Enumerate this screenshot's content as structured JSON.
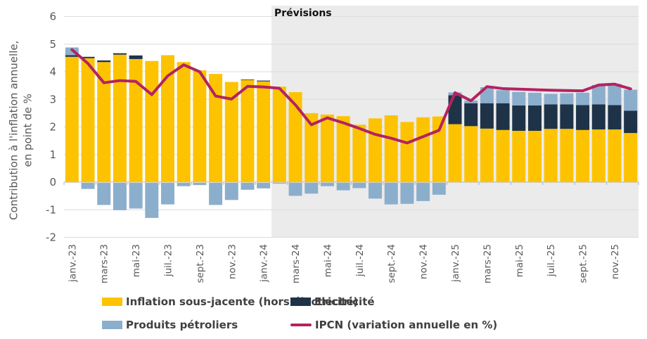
{
  "figure": {
    "ylabel_line1": "Contribution à l'inflation annuelle,",
    "ylabel_line2": "en point de %",
    "forecast_label": "Prévisions"
  },
  "legend": {
    "core": "Inflation sous-jacente (hors électricité)",
    "electricity": "Electricité",
    "petroleum": "Produits pétroliers",
    "ipcn": "IPCN (variation annuelle en %)"
  },
  "colors": {
    "core": "#FDC300",
    "electricity": "#1E3348",
    "petroleum": "#8CAECD",
    "ipcn": "#B32361",
    "forecast_bg": "#EBEBEB",
    "grid": "#DCDCDC",
    "zero_line": "#B5B5B5",
    "axis_text": "#595959"
  },
  "chart_data": {
    "type": "combo: stacked bar + line",
    "title": "",
    "xlabel": "",
    "ylabel": "Contribution à l'inflation annuelle, en point de %",
    "ylim": [
      -2,
      6
    ],
    "yticks": [
      6,
      5,
      4,
      3,
      2,
      1,
      0,
      -1,
      -2
    ],
    "grid": "horizontal",
    "legend_position": "bottom",
    "forecast_region_label": "Prévisions",
    "forecast_start_category": "févr.-24",
    "forecast_start_index": 13,
    "categories": [
      "janv.-23",
      "févr.-23",
      "mars-23",
      "avr.-23",
      "mai-23",
      "juin-23",
      "juil.-23",
      "août-23",
      "sept.-23",
      "oct.-23",
      "nov.-23",
      "déc.-23",
      "janv.-24",
      "févr.-24",
      "mars-24",
      "avr.-24",
      "mai-24",
      "juin-24",
      "juil.-24",
      "août-24",
      "sept.-24",
      "oct.-24",
      "nov.-24",
      "déc.-24",
      "janv.-25",
      "févr.-25",
      "mars-25",
      "avr.-25",
      "mai-25",
      "juin-25",
      "juil.-25",
      "août-25",
      "sept.-25",
      "oct.-25",
      "nov.-25",
      "déc.-25"
    ],
    "x_tick_labels": [
      "janv.-23",
      "mars-23",
      "mai-23",
      "juil.-23",
      "sept.-23",
      "nov.-23",
      "janv.-24",
      "mars-24",
      "mai-24",
      "juil.-24",
      "sept.-24",
      "nov.-24",
      "janv.-25",
      "mars-25",
      "mai-25",
      "juil.-25",
      "sept.-25",
      "nov.-25"
    ],
    "series": [
      {
        "name": "Inflation sous-jacente (hors électricité)",
        "type": "bar",
        "color_key": "core",
        "values": [
          4.54,
          4.49,
          4.35,
          4.62,
          4.46,
          4.39,
          4.6,
          4.35,
          4.05,
          3.92,
          3.63,
          3.7,
          3.65,
          3.46,
          3.26,
          2.5,
          2.45,
          2.39,
          2.08,
          2.31,
          2.42,
          2.18,
          2.35,
          2.38,
          2.1,
          2.03,
          1.94,
          1.89,
          1.86,
          1.86,
          1.93,
          1.93,
          1.89,
          1.91,
          1.91,
          1.78
        ]
      },
      {
        "name": "Electricité",
        "type": "bar",
        "color_key": "electricity",
        "values": [
          0.06,
          0.05,
          0.06,
          0.05,
          0.13,
          0,
          0,
          0,
          0,
          0,
          0,
          0.02,
          0.03,
          0,
          0,
          0,
          0,
          0,
          0,
          0,
          0,
          0,
          0,
          0,
          1.05,
          0.83,
          0.92,
          0.97,
          0.92,
          0.92,
          0.89,
          0.89,
          0.9,
          0.91,
          0.88,
          0.81
        ]
      },
      {
        "name": "Produits pétroliers",
        "type": "bar",
        "color_key": "petroleum",
        "values": [
          0.28,
          -0.22,
          -0.8,
          -0.99,
          -0.93,
          -1.27,
          -0.78,
          -0.12,
          -0.08,
          -0.8,
          -0.62,
          -0.25,
          -0.2,
          -0.03,
          -0.47,
          -0.39,
          -0.12,
          -0.27,
          -0.19,
          -0.57,
          -0.78,
          -0.76,
          -0.66,
          -0.43,
          0.1,
          0.1,
          0.58,
          0.47,
          0.49,
          0.46,
          0.38,
          0.4,
          0.45,
          0.7,
          0.77,
          0.76
        ]
      },
      {
        "name": "IPCN (variation annuelle en %)",
        "type": "line",
        "color_key": "ipcn",
        "values": [
          4.8,
          4.3,
          3.6,
          3.68,
          3.65,
          3.17,
          3.85,
          4.25,
          4.0,
          3.12,
          3.01,
          3.47,
          3.45,
          3.4,
          2.8,
          2.08,
          2.33,
          2.15,
          1.95,
          1.73,
          1.59,
          1.42,
          1.65,
          1.88,
          3.24,
          2.95,
          3.46,
          3.39,
          3.37,
          3.35,
          3.33,
          3.32,
          3.31,
          3.52,
          3.55,
          3.38
        ]
      }
    ]
  }
}
